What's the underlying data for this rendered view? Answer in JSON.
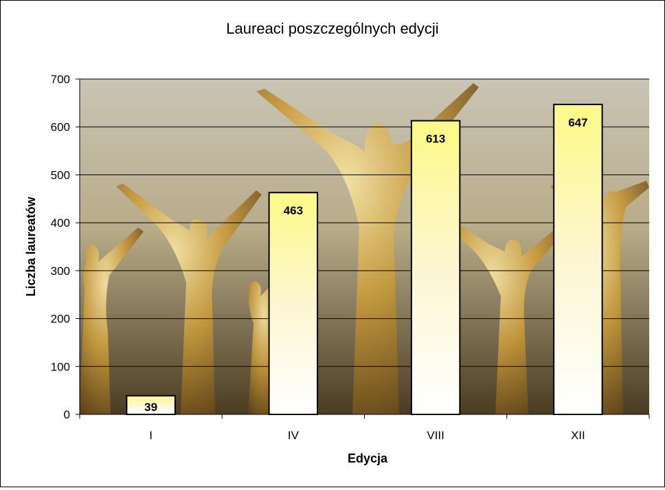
{
  "chart_data": {
    "type": "bar",
    "title": "Laureaci poszczególnych edycji",
    "xlabel": "Edycja",
    "ylabel": "Liczba laureatów",
    "categories": [
      "I",
      "IV",
      "VIII",
      "XII"
    ],
    "values": [
      39,
      463,
      613,
      647
    ],
    "ylim": [
      0,
      700
    ],
    "yticks": [
      0,
      100,
      200,
      300,
      400,
      500,
      600,
      700
    ],
    "grid": true,
    "legend": "none",
    "colors": {
      "bar_bottom": "#ffffff",
      "bar_mid": "#fdf6d2",
      "bar_top": "#fcfa86",
      "bar_outline": "#000000",
      "gridline": "#000000"
    }
  }
}
